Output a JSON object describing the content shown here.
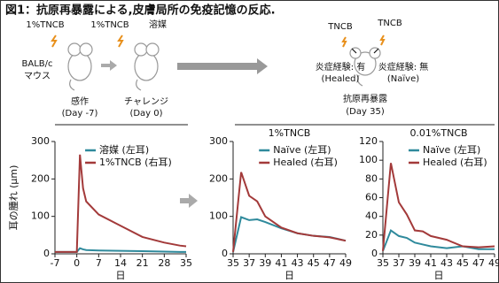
{
  "figure": {
    "title": "図1：抗原再暴露による,皮膚局所の免疫記憶の反応."
  },
  "diagram": {
    "step1_agent": "1%TNCB",
    "mouse_label_1": "BALB/c",
    "mouse_label_2": "マウス",
    "step1_name": "感作",
    "step1_day": "(Day -7)",
    "step2_agent": "1%TNCB",
    "step2_vehicle": "溶媒",
    "step2_name": "チャレンジ",
    "step2_day": "(Day 0)",
    "step3_agent_left": "TNCB",
    "step3_agent_right": "TNCB",
    "healed_label": "炎症経験: 有",
    "healed_name": "(Healed)",
    "naive_label": "炎症経験: 無",
    "naive_name": "(Naïve)",
    "step3_name": "抗原再暴露",
    "step3_day": "(Day 35)"
  },
  "chart_data": [
    {
      "type": "line",
      "ylabel": "耳の腫れ (μm)",
      "xlabel": "日",
      "x": [
        -7,
        0,
        1,
        2,
        3,
        7,
        14,
        21,
        28,
        33,
        35
      ],
      "xlim": [
        -7,
        35
      ],
      "xticks": [
        -7,
        0,
        7,
        14,
        21,
        28,
        35
      ],
      "ylim": [
        0,
        300
      ],
      "yticks": [
        0,
        100,
        200,
        300
      ],
      "legend": "upper right",
      "series": [
        {
          "name": "溶媒 (左耳)",
          "color": "#2f8a9c",
          "values": [
            5,
            5,
            15,
            12,
            10,
            9,
            8,
            7,
            6,
            5,
            5
          ]
        },
        {
          "name": "1%TNCB (右耳)",
          "color": "#a33a3a",
          "values": [
            5,
            5,
            265,
            175,
            140,
            105,
            75,
            45,
            30,
            22,
            20
          ]
        }
      ]
    },
    {
      "type": "line",
      "title": "1%TNCB",
      "xlabel": "日",
      "x": [
        35,
        36,
        37,
        38,
        39,
        41,
        43,
        45,
        47,
        49
      ],
      "xlim": [
        35,
        49
      ],
      "xticks": [
        35,
        37,
        39,
        41,
        43,
        45,
        47,
        49
      ],
      "ylim": [
        0,
        300
      ],
      "yticks": [
        0,
        100,
        200,
        300
      ],
      "legend": "upper right",
      "series": [
        {
          "name": "Naïve (左耳)",
          "color": "#2f8a9c",
          "values": [
            5,
            98,
            90,
            92,
            85,
            68,
            55,
            48,
            45,
            35
          ]
        },
        {
          "name": "Healed (右耳)",
          "color": "#a33a3a",
          "values": [
            5,
            218,
            155,
            140,
            100,
            70,
            55,
            48,
            44,
            35
          ]
        }
      ]
    },
    {
      "type": "line",
      "title": "0.01%TNCB",
      "xlabel": "日",
      "x": [
        35,
        36,
        37,
        38,
        39,
        40,
        41,
        43,
        45,
        47,
        49
      ],
      "xlim": [
        35,
        49
      ],
      "xticks": [
        35,
        37,
        39,
        41,
        43,
        45,
        47,
        49
      ],
      "ylim": [
        0,
        120
      ],
      "yticks": [
        0,
        20,
        40,
        60,
        80,
        100,
        120
      ],
      "legend": "upper right",
      "series": [
        {
          "name": "Naïve (左耳)",
          "color": "#2f8a9c",
          "values": [
            3,
            25,
            19,
            17,
            12,
            10,
            8,
            6,
            8,
            5,
            5
          ]
        },
        {
          "name": "Healed (右耳)",
          "color": "#a33a3a",
          "values": [
            3,
            97,
            55,
            42,
            25,
            24,
            19,
            15,
            8,
            7,
            8
          ]
        }
      ]
    }
  ]
}
